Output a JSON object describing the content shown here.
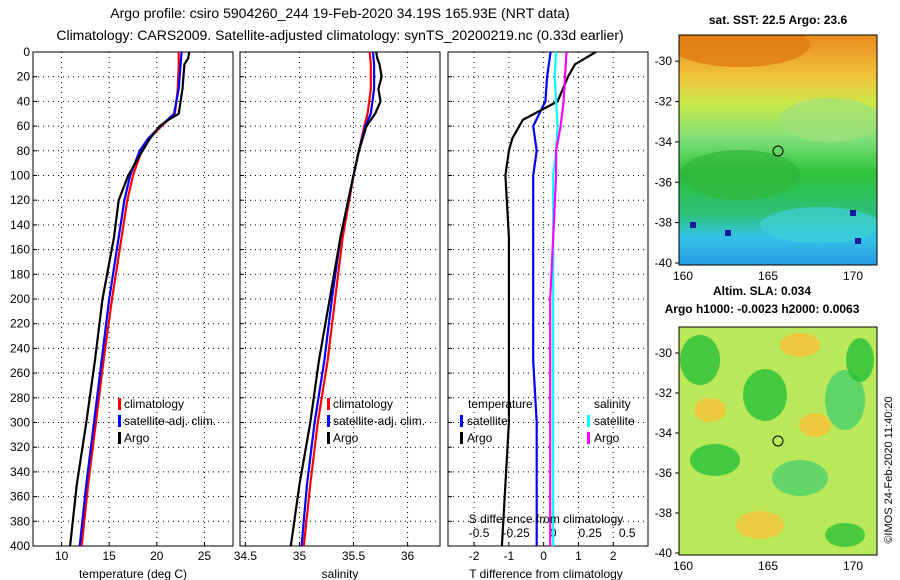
{
  "header": {
    "line1": "Argo profile: csiro 5904260_244 19-Feb-2020 34.19S 165.93E (NRT data)",
    "line2": "Climatology: CARS2009. Satellite-adjusted climatology: synTS_20200219.nc (0.33d earlier)"
  },
  "depth_ticks": [
    "0",
    "20",
    "40",
    "60",
    "80",
    "100",
    "120",
    "140",
    "160",
    "180",
    "200",
    "220",
    "240",
    "260",
    "280",
    "300",
    "320",
    "340",
    "360",
    "380",
    "400"
  ],
  "colors": {
    "climatology": "#ff0000",
    "satellite": "#0000ff",
    "argo": "#000000",
    "sal_satellite": "#00ffff",
    "sal_argo": "#ff00ff"
  },
  "chart_data": [
    {
      "type": "line",
      "xlabel": "temperature (deg C)",
      "xlim": [
        7,
        28
      ],
      "ylim": [
        400,
        0
      ],
      "xticks": [
        "10",
        "15",
        "20",
        "25"
      ],
      "legend": [
        "climatology",
        "satellite-adj. clim.",
        "Argo"
      ],
      "series": [
        {
          "name": "climatology",
          "depth": [
            0,
            10,
            30,
            50,
            60,
            70,
            80,
            100,
            120,
            150,
            200,
            250,
            300,
            350,
            400
          ],
          "values": [
            22.3,
            22.3,
            22.2,
            21.9,
            20.5,
            19.2,
            18.4,
            17.5,
            16.9,
            16.3,
            15.3,
            14.4,
            13.6,
            12.8,
            12.1
          ]
        },
        {
          "name": "satellite-adj. clim.",
          "depth": [
            0,
            10,
            30,
            50,
            60,
            70,
            80,
            100,
            120,
            150,
            200,
            250,
            300,
            350,
            400
          ],
          "values": [
            22.6,
            22.5,
            22.3,
            21.8,
            20.4,
            19.1,
            18.2,
            17.2,
            16.6,
            16.0,
            15.0,
            14.2,
            13.4,
            12.6,
            11.9
          ]
        },
        {
          "name": "Argo",
          "depth": [
            0,
            5,
            10,
            30,
            50,
            55,
            60,
            70,
            80,
            100,
            120,
            150,
            200,
            250,
            300,
            350,
            400
          ],
          "values": [
            23.4,
            23.3,
            22.9,
            22.7,
            22.3,
            21.2,
            20.3,
            19.3,
            18.5,
            17.0,
            16.0,
            15.5,
            14.3,
            13.5,
            12.6,
            11.6,
            10.9
          ]
        }
      ]
    },
    {
      "type": "line",
      "xlabel": "salinity",
      "xlim": [
        34.45,
        36.3
      ],
      "ylim": [
        400,
        0
      ],
      "xticks": [
        "34.5",
        "35",
        "35.5",
        "36"
      ],
      "legend": [
        "climatology",
        "satellite-adj. clim.",
        "Argo"
      ],
      "series": [
        {
          "name": "climatology",
          "depth": [
            0,
            10,
            30,
            50,
            60,
            80,
            100,
            150,
            200,
            250,
            300,
            350,
            400
          ],
          "values": [
            35.65,
            35.66,
            35.66,
            35.63,
            35.6,
            35.55,
            35.5,
            35.4,
            35.33,
            35.26,
            35.17,
            35.1,
            35.04
          ]
        },
        {
          "name": "satellite-adj. clim.",
          "depth": [
            0,
            10,
            30,
            50,
            60,
            80,
            100,
            150,
            200,
            250,
            300,
            350,
            400
          ],
          "values": [
            35.68,
            35.69,
            35.69,
            35.66,
            35.61,
            35.55,
            35.5,
            35.38,
            35.3,
            35.23,
            35.14,
            35.07,
            35.02
          ]
        },
        {
          "name": "Argo",
          "depth": [
            0,
            5,
            10,
            20,
            30,
            40,
            50,
            55,
            60,
            80,
            100,
            150,
            200,
            250,
            300,
            350,
            400
          ],
          "values": [
            35.71,
            35.72,
            35.74,
            35.76,
            35.73,
            35.75,
            35.7,
            35.66,
            35.62,
            35.55,
            35.5,
            35.38,
            35.28,
            35.18,
            35.1,
            35.0,
            34.92
          ]
        }
      ]
    },
    {
      "type": "line",
      "xlabel": "T difference from climatology",
      "xlabel_top": "S difference from climatology",
      "xlim": [
        -2.75,
        3.0
      ],
      "ylim": [
        400,
        0
      ],
      "xticks": [
        "-2",
        "-1",
        "0",
        "1",
        "2"
      ],
      "top_ticks": [
        "-0.5",
        "-0.25",
        "0",
        "0.25",
        "0.5"
      ],
      "legend_temperature": {
        "title": "temperature",
        "items": [
          "satellite",
          "Argo"
        ]
      },
      "legend_salinity": {
        "title": "salinity",
        "items": [
          "satellite",
          "Argo"
        ]
      },
      "series": [
        {
          "name": "temperature satellite",
          "depth": [
            0,
            20,
            40,
            60,
            80,
            100,
            150,
            200,
            250,
            300,
            350,
            400
          ],
          "values": [
            0.2,
            0.1,
            0.05,
            -0.3,
            -0.2,
            -0.3,
            -0.3,
            -0.3,
            -0.3,
            -0.2,
            -0.2,
            -0.2
          ]
        },
        {
          "name": "temperature Argo",
          "depth": [
            0,
            5,
            10,
            20,
            40,
            55,
            70,
            80,
            100,
            150,
            200,
            250,
            300,
            350,
            400
          ],
          "values": [
            1.5,
            1.2,
            0.9,
            0.7,
            0.4,
            -0.6,
            -0.9,
            -1.0,
            -1.1,
            -1.0,
            -1.0,
            -1.0,
            -1.0,
            -1.1,
            -1.2
          ]
        },
        {
          "name": "salinity satellite",
          "depth": [
            0,
            20,
            40,
            60,
            80,
            100,
            150,
            200,
            250,
            300,
            350,
            400
          ],
          "values": [
            0.02,
            0.01,
            0.02,
            0.03,
            0.02,
            0.0,
            0.0,
            0.0,
            0.0,
            0.0,
            0.0,
            0.0
          ]
        },
        {
          "name": "salinity Argo",
          "depth": [
            0,
            20,
            40,
            60,
            80,
            100,
            150,
            200,
            250,
            300,
            350,
            400
          ],
          "values": [
            0.09,
            0.08,
            0.07,
            0.05,
            0.02,
            0.02,
            0.0,
            -0.02,
            -0.02,
            -0.02,
            -0.02,
            -0.02
          ]
        }
      ]
    }
  ],
  "maps": [
    {
      "title": "sat. SST: 22.5 Argo: 23.6",
      "yticks": [
        "-30",
        "-32",
        "-34",
        "-36",
        "-38",
        "-40"
      ],
      "xticks": [
        "160",
        "165",
        "170"
      ]
    },
    {
      "title_line1": "Altim. SLA: 0.034",
      "title_line2": "Argo h1000: -0.0023 h2000: 0.0063",
      "yticks": [
        "-30",
        "-32",
        "-34",
        "-36",
        "-38",
        "-40"
      ],
      "xticks": [
        "160",
        "165",
        "170"
      ]
    }
  ],
  "credit": "©IMOS 24-Feb-2020 11:40:20"
}
